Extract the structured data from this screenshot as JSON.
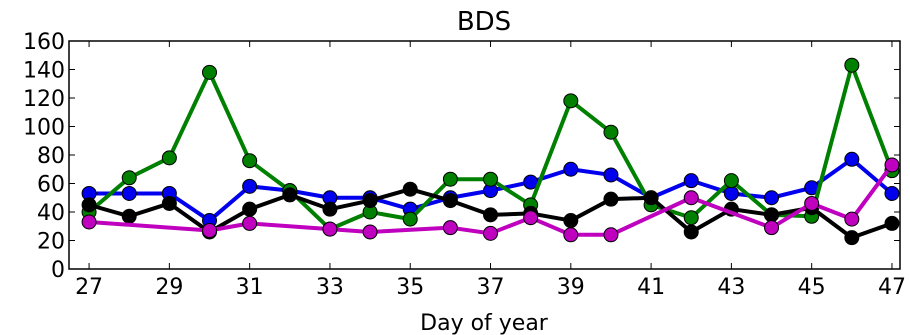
{
  "chart_data": {
    "type": "line",
    "title": "BDS",
    "xlabel": "Day of year",
    "ylabel": "",
    "xlim": [
      26.5,
      47.2
    ],
    "ylim": [
      0,
      160
    ],
    "xticks": [
      27,
      29,
      31,
      33,
      35,
      37,
      39,
      41,
      43,
      45,
      47
    ],
    "yticks": [
      0,
      20,
      40,
      60,
      80,
      100,
      120,
      140,
      160
    ],
    "grid": false,
    "x": [
      27,
      28,
      29,
      30,
      31,
      32,
      33,
      34,
      35,
      36,
      37,
      38,
      39,
      40,
      41,
      42,
      43,
      44,
      45,
      46,
      47
    ],
    "series": [
      {
        "color": "#0000ee",
        "points": [
          [
            27,
            53
          ],
          [
            28,
            53
          ],
          [
            29,
            53
          ],
          [
            30,
            34
          ],
          [
            31,
            58
          ],
          [
            32,
            55
          ],
          [
            33,
            50
          ],
          [
            34,
            50
          ],
          [
            35,
            42
          ],
          [
            36,
            50
          ],
          [
            37,
            55
          ],
          [
            38,
            61
          ],
          [
            39,
            70
          ],
          [
            40,
            66
          ],
          [
            41,
            50
          ],
          [
            42,
            62
          ],
          [
            43,
            53
          ],
          [
            44,
            50
          ],
          [
            45,
            57
          ],
          [
            46,
            77
          ],
          [
            47,
            53
          ]
        ]
      },
      {
        "color": "#008000",
        "points": [
          [
            27,
            40
          ],
          [
            28,
            64
          ],
          [
            29,
            78
          ],
          [
            30,
            138
          ],
          [
            31,
            76
          ],
          [
            32,
            55
          ],
          [
            33,
            28
          ],
          [
            34,
            40
          ],
          [
            35,
            35
          ],
          [
            36,
            63
          ],
          [
            37,
            63
          ],
          [
            38,
            45
          ],
          [
            39,
            118
          ],
          [
            40,
            96
          ],
          [
            41,
            45
          ],
          [
            42,
            36
          ],
          [
            43,
            62
          ],
          [
            44,
            38
          ],
          [
            45,
            37
          ],
          [
            46,
            143
          ],
          [
            47,
            69
          ]
        ]
      },
      {
        "color": "#000000",
        "points": [
          [
            27,
            45
          ],
          [
            28,
            37
          ],
          [
            29,
            46
          ],
          [
            30,
            26
          ],
          [
            31,
            42
          ],
          [
            32,
            52
          ],
          [
            33,
            42
          ],
          [
            34,
            48
          ],
          [
            35,
            56
          ],
          [
            36,
            48
          ],
          [
            37,
            38
          ],
          [
            38,
            39
          ],
          [
            39,
            34
          ],
          [
            40,
            49
          ],
          [
            41,
            50
          ],
          [
            42,
            26
          ],
          [
            43,
            42
          ],
          [
            44,
            38
          ],
          [
            45,
            43
          ],
          [
            46,
            22
          ],
          [
            47,
            32
          ]
        ]
      },
      {
        "color": "#bf00bf",
        "points": [
          [
            27,
            33
          ],
          [
            30,
            27
          ],
          [
            31,
            32
          ],
          [
            33,
            28
          ],
          [
            34,
            26
          ],
          [
            36,
            29
          ],
          [
            37,
            25
          ],
          [
            38,
            36
          ],
          [
            39,
            24
          ],
          [
            40,
            24
          ],
          [
            42,
            50
          ],
          [
            44,
            29
          ],
          [
            45,
            46
          ],
          [
            46,
            35
          ],
          [
            47,
            73
          ]
        ]
      }
    ]
  }
}
